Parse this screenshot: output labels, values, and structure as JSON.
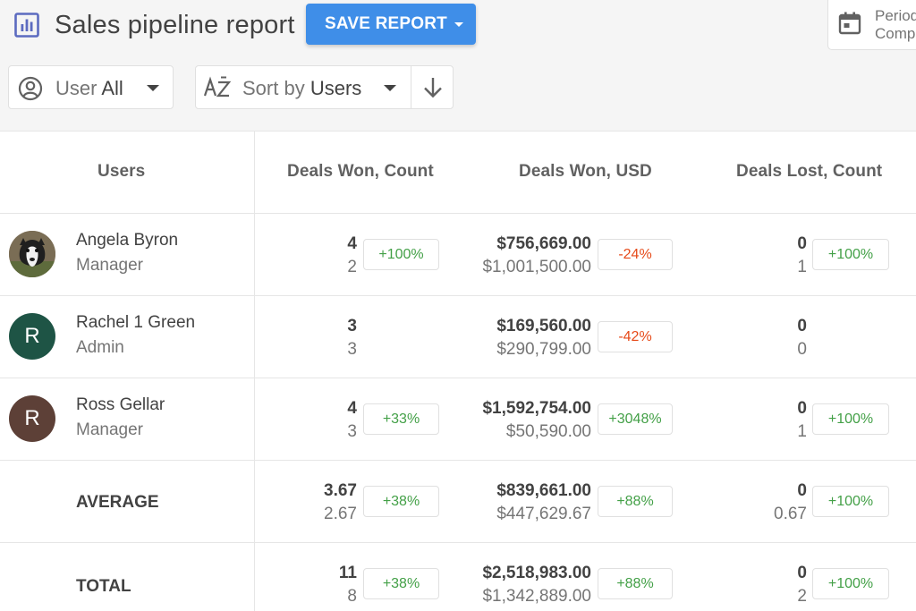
{
  "header": {
    "title": "Sales pipeline report",
    "save_label": "SAVE REPORT",
    "period_line1": "Period",
    "period_line2": "Compare"
  },
  "filters": {
    "user_prefix": "User",
    "user_value": "All",
    "sort_prefix": "Sort by",
    "sort_value": "Users"
  },
  "table": {
    "columns": [
      "Users",
      "Deals Won, Count",
      "Deals Won, USD",
      "Deals Lost, Count"
    ],
    "rows": [
      {
        "name": "Angela Byron",
        "role": "Manager",
        "avatar": "",
        "won_count": "4",
        "won_count_prev": "2",
        "won_count_change": "+100%",
        "won_count_trend": "pos",
        "won_usd": "$756,669.00",
        "won_usd_prev": "$1,001,500.00",
        "won_usd_change": "-24%",
        "won_usd_trend": "neg",
        "lost_count": "0",
        "lost_count_prev": "1",
        "lost_count_change": "+100%",
        "lost_count_trend": "pos"
      },
      {
        "name": "Rachel 1 Green",
        "role": "Admin",
        "avatar": "R",
        "won_count": "3",
        "won_count_prev": "3",
        "won_count_change": "",
        "won_count_trend": "",
        "won_usd": "$169,560.00",
        "won_usd_prev": "$290,799.00",
        "won_usd_change": "-42%",
        "won_usd_trend": "neg",
        "lost_count": "0",
        "lost_count_prev": "0",
        "lost_count_change": "",
        "lost_count_trend": ""
      },
      {
        "name": "Ross Gellar",
        "role": "Manager",
        "avatar": "R",
        "won_count": "4",
        "won_count_prev": "3",
        "won_count_change": "+33%",
        "won_count_trend": "pos",
        "won_usd": "$1,592,754.00",
        "won_usd_prev": "$50,590.00",
        "won_usd_change": "+3048%",
        "won_usd_trend": "pos",
        "lost_count": "0",
        "lost_count_prev": "1",
        "lost_count_change": "+100%",
        "lost_count_trend": "pos"
      }
    ],
    "summary": [
      {
        "label": "AVERAGE",
        "won_count": "3.67",
        "won_count_prev": "2.67",
        "won_count_change": "+38%",
        "won_usd": "$839,661.00",
        "won_usd_prev": "$447,629.67",
        "won_usd_change": "+88%",
        "lost_count": "0",
        "lost_count_prev": "0.67",
        "lost_count_change": "+100%"
      },
      {
        "label": "TOTAL",
        "won_count": "11",
        "won_count_prev": "8",
        "won_count_change": "+38%",
        "won_usd": "$2,518,983.00",
        "won_usd_prev": "$1,342,889.00",
        "won_usd_change": "+88%",
        "lost_count": "0",
        "lost_count_prev": "2",
        "lost_count_change": "+100%"
      }
    ]
  },
  "colors": {
    "accent": "#3f8ee8",
    "positive": "#43a047",
    "negative": "#e64a19",
    "avatar_rachel": "#1e5445",
    "avatar_ross": "#5d4037"
  },
  "icons": {
    "title": "bar-chart-icon",
    "period": "calendar-icon",
    "user_filter": "account-circle-icon",
    "sort": "sort-az-icon",
    "direction": "arrow-down-icon"
  }
}
